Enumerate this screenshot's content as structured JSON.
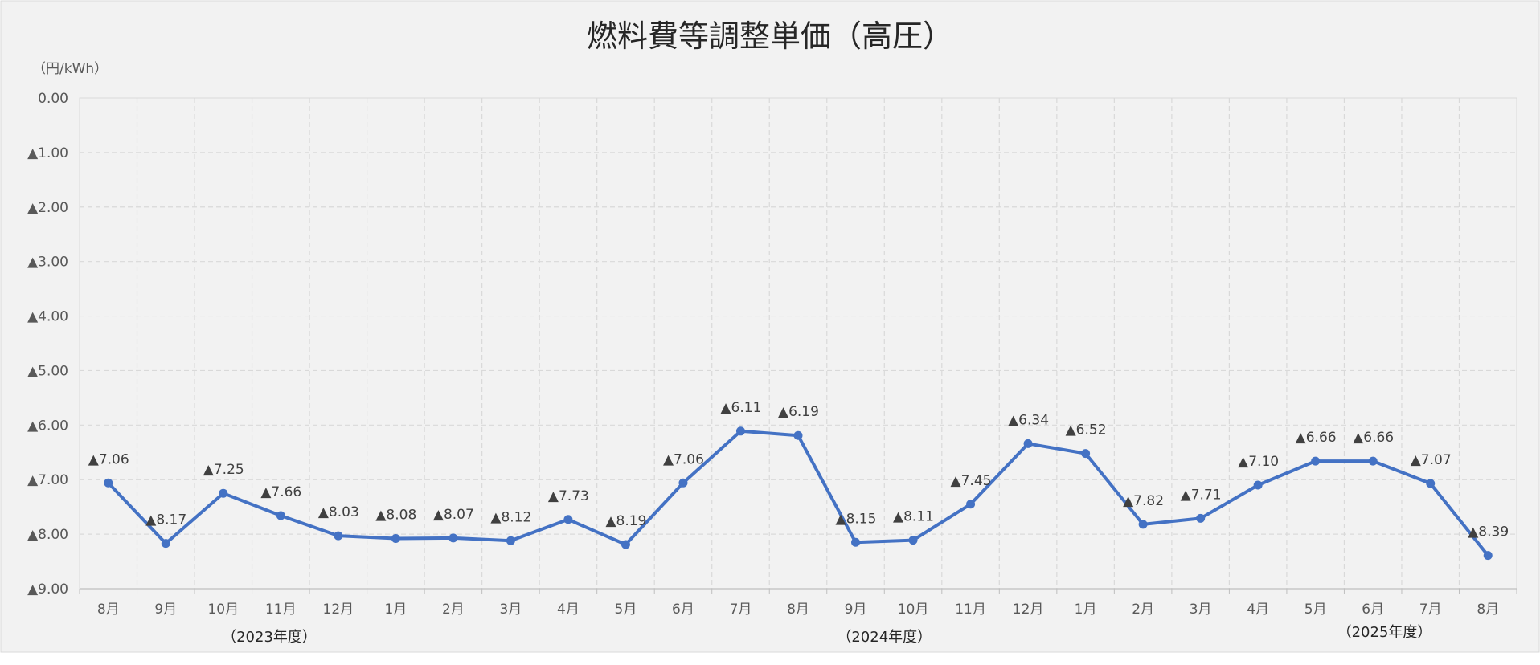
{
  "chart_data": {
    "type": "line",
    "title": "燃料費等調整単価（高圧）",
    "unit_label": "（円/kWh）",
    "categories": [
      "8月",
      "9月",
      "10月",
      "11月",
      "12月",
      "1月",
      "2月",
      "3月",
      "4月",
      "5月",
      "6月",
      "7月",
      "8月",
      "9月",
      "10月",
      "11月",
      "12月",
      "1月",
      "2月",
      "3月",
      "4月",
      "5月",
      "6月",
      "7月",
      "8月"
    ],
    "y_tick_labels": [
      "0.00",
      "▲1.00",
      "▲2.00",
      "▲3.00",
      "▲4.00",
      "▲5.00",
      "▲6.00",
      "▲7.00",
      "▲8.00",
      "▲9.00"
    ],
    "ylim": [
      0,
      9
    ],
    "y_axis_inverted": true,
    "series": [
      {
        "values": [
          7.06,
          8.17,
          7.25,
          7.66,
          8.03,
          8.08,
          8.07,
          8.12,
          7.73,
          8.19,
          7.06,
          6.11,
          6.19,
          8.15,
          8.11,
          7.45,
          6.34,
          6.52,
          7.82,
          7.71,
          7.1,
          6.66,
          6.66,
          7.07,
          8.39
        ],
        "labels": [
          "▲7.06",
          "▲8.17",
          "▲7.25",
          "▲7.66",
          "▲8.03",
          "▲8.08",
          "▲8.07",
          "▲8.12",
          "▲7.73",
          "▲8.19",
          "▲7.06",
          "▲6.11",
          "▲6.19",
          "▲8.15",
          "▲8.11",
          "▲7.45",
          "▲6.34",
          "▲6.52",
          "▲7.82",
          "▲7.71",
          "▲7.10",
          "▲6.66",
          "▲6.66",
          "▲7.07",
          "▲8.39"
        ],
        "color": "#4472C4"
      }
    ],
    "fiscal_year_labels": [
      {
        "text": "（2023年度）",
        "category_index": 2.8
      },
      {
        "text": "（2024年度）",
        "category_index": 13.5
      },
      {
        "text": "（2025年度）",
        "category_index": 22.2
      }
    ],
    "grid": true,
    "grid_style": "dashed",
    "background": "#F2F2F2",
    "plot_background": "#F2F2F2",
    "grid_color": "#D9D9D9",
    "text_color": "#595959"
  }
}
